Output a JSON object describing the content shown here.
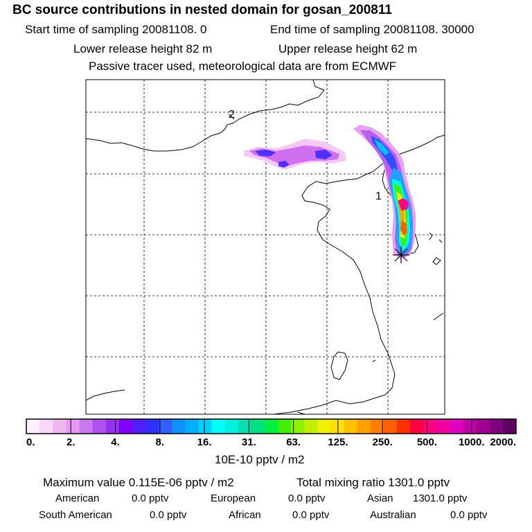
{
  "header": {
    "title": "BC  source contributions in nested domain for gosan_200811",
    "start": "Start time of sampling 20081108.     0",
    "end": "End time of sampling 20081108. 30000",
    "lower": "Lower release height   82 m",
    "upper": "Upper release height   62 m",
    "note": "Passive tracer used, meteorological data are from ECMWF"
  },
  "map": {
    "labels": {
      "label_2": "2",
      "label_1": "1"
    },
    "colors": {
      "coast": "#000000",
      "grid": "#000000"
    }
  },
  "colorbar": {
    "ticks": [
      "0.",
      "2.",
      "4.",
      "8.",
      "16.",
      "31.",
      "63.",
      "125.",
      "250.",
      "500.",
      "1000.",
      "2000."
    ],
    "units": "10E-10 pptv / m2",
    "colors": [
      "#fff0ff",
      "#f8d8f8",
      "#f0b8f0",
      "#e898f0",
      "#c878f0",
      "#b050f0",
      "#9830f0",
      "#8000ff",
      "#5020ff",
      "#3030ff",
      "#3060ff",
      "#1090ff",
      "#00b0ff",
      "#00d0ff",
      "#00ffff",
      "#00f0e0",
      "#00e0b0",
      "#00e080",
      "#00f040",
      "#40f000",
      "#90f000",
      "#c0f000",
      "#f0f000",
      "#ffe000",
      "#ffc000",
      "#ffa000",
      "#ff8000",
      "#ff6000",
      "#ff3000",
      "#ff0040",
      "#ff0080",
      "#f000a0",
      "#e000c0",
      "#c000a8",
      "#a00090",
      "#800080",
      "#600060"
    ]
  },
  "footer": {
    "max_label": "Maximum value  0.115E-06 pptv / m2",
    "total_label": "Total mixing ratio     1301.0 pptv",
    "american": "American",
    "american_val": "0.0 pptv",
    "european": "European",
    "european_val": "0.0 pptv",
    "asian": "Asian",
    "asian_val": "1301.0 pptv",
    "south_american": "South American",
    "south_american_val": "0.0 pptv",
    "african": "African",
    "african_val": "0.0 pptv",
    "australian": "Australian",
    "australian_val": "0.0 pptv"
  }
}
